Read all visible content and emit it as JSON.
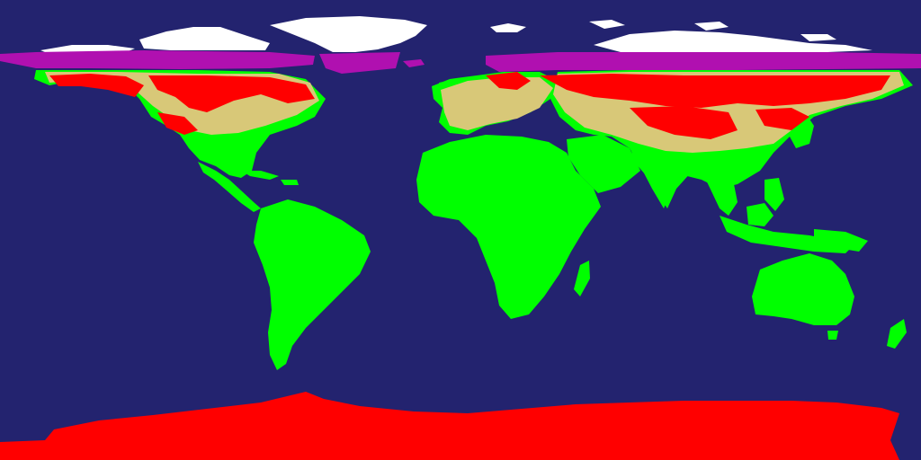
{
  "map": {
    "projection": "equirectangular",
    "colors": {
      "ocean": "#23236f",
      "low": "#00ff00",
      "mixed": "#d8c878",
      "high": "#ff0000",
      "ice": "#ffffff",
      "band": "#b010b0"
    },
    "layers": [
      "ocean",
      "land-low",
      "land-mixed",
      "land-high",
      "ice",
      "band"
    ]
  }
}
